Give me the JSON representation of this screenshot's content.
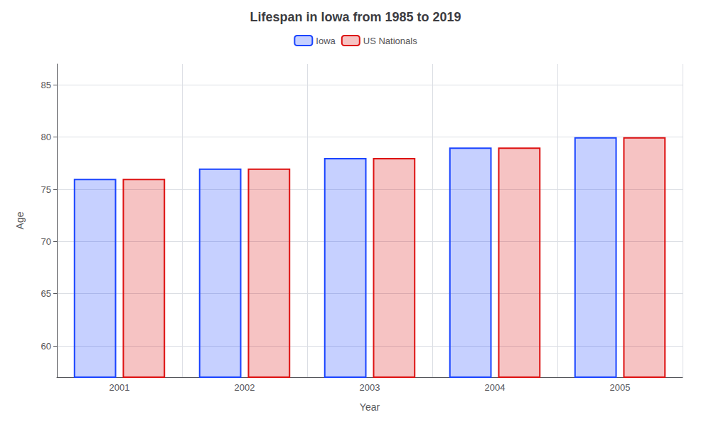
{
  "chart_data": {
    "type": "bar",
    "title": "Lifespan in Iowa from 1985 to 2019",
    "x_label": "Year",
    "y_label": "Age",
    "categories": [
      "2001",
      "2002",
      "2003",
      "2004",
      "2005"
    ],
    "series": [
      {
        "name": "Iowa",
        "color": "#1a44ff",
        "values": [
          76,
          77,
          78,
          79,
          80
        ]
      },
      {
        "name": "US Nationals",
        "color": "#dd1111",
        "values": [
          76,
          77,
          78,
          79,
          80
        ]
      }
    ],
    "ylim": [
      57,
      87
    ],
    "yticks": [
      60,
      65,
      70,
      75,
      80,
      85
    ],
    "grid": true,
    "legend": "top"
  }
}
